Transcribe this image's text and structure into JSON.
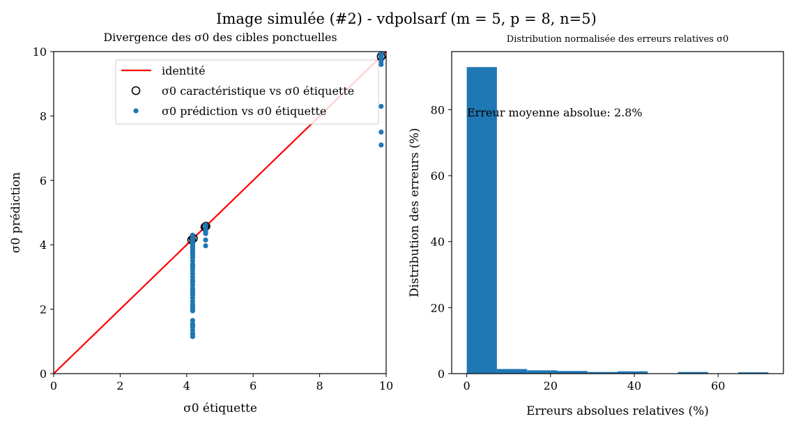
{
  "suptitle": "Image simulée (#2) - vdpolsarf (m = 5, p = 8, n=5)",
  "chart_data": [
    {
      "type": "scatter",
      "title": "Divergence des σ0 des cibles ponctuelles",
      "xlabel": "σ0 étiquette",
      "ylabel": "σ0 prédiction",
      "xlim": [
        0,
        10
      ],
      "ylim": [
        0,
        10
      ],
      "xticks": [
        "0",
        "2",
        "4",
        "6",
        "8",
        "10"
      ],
      "yticks": [
        "0",
        "2",
        "4",
        "6",
        "8",
        "10"
      ],
      "legend_position": "top-right",
      "legend": [
        {
          "label": "identité",
          "kind": "line",
          "color": "#ff0000"
        },
        {
          "label": "σ0 caractéristique vs σ0 étiquette",
          "kind": "open-circle",
          "color": "#000000"
        },
        {
          "label": "σ0 prédiction vs σ0 étiquette",
          "kind": "dot",
          "color": "#1f77b4"
        }
      ],
      "identity_line": {
        "x": [
          0,
          10
        ],
        "y": [
          0,
          10
        ]
      },
      "characteristic_points": {
        "x": [
          4.15,
          4.2,
          4.55,
          4.58,
          9.85,
          9.9
        ],
        "y": [
          4.15,
          4.2,
          4.55,
          4.58,
          9.85,
          9.9
        ]
      },
      "prediction_points": {
        "x": [
          4.18,
          4.18,
          4.18,
          4.18,
          4.18,
          4.18,
          4.18,
          4.18,
          4.18,
          4.18,
          4.18,
          4.18,
          4.18,
          4.18,
          4.18,
          4.18,
          4.18,
          4.18,
          4.18,
          4.18,
          4.18,
          4.18,
          4.18,
          4.18,
          4.18,
          4.18,
          4.18,
          4.18,
          4.18,
          4.18,
          4.18,
          4.18,
          4.18,
          4.18,
          4.18,
          4.18,
          4.18,
          4.18,
          4.18,
          4.18,
          4.18,
          4.18,
          4.18,
          4.18,
          4.18,
          4.57,
          4.57,
          4.57,
          4.57,
          4.57,
          4.57,
          4.57,
          4.57,
          4.57,
          4.57,
          9.85,
          9.85,
          9.85,
          9.85,
          9.85,
          9.85,
          9.85,
          9.85,
          9.85,
          9.85,
          9.85
        ],
        "y": [
          4.3,
          4.25,
          4.2,
          4.15,
          4.1,
          4.05,
          4.0,
          3.95,
          3.9,
          3.85,
          3.8,
          3.75,
          3.7,
          3.65,
          3.6,
          3.5,
          3.4,
          3.3,
          3.2,
          3.1,
          3.0,
          2.9,
          2.85,
          2.75,
          2.65,
          2.55,
          2.5,
          2.45,
          2.35,
          2.25,
          2.15,
          2.05,
          2.0,
          1.95,
          1.65,
          1.55,
          1.45,
          1.35,
          1.25,
          1.2,
          1.15,
          1.5,
          3.35,
          2.6,
          2.1,
          4.62,
          4.58,
          4.55,
          4.52,
          4.48,
          4.45,
          4.4,
          4.35,
          4.15,
          3.97,
          9.95,
          9.92,
          9.9,
          9.88,
          9.85,
          9.8,
          9.7,
          9.6,
          8.3,
          7.5,
          7.1
        ]
      }
    },
    {
      "type": "bar",
      "title": "Distribution normalisée des erreurs relatives σ0",
      "xlabel": "Erreurs absolues relatives (%)",
      "ylabel": "Distribution des erreurs (%)",
      "xlim": [
        -3.6,
        75.6
      ],
      "ylim": [
        0,
        97.6
      ],
      "xticks": [
        "0",
        "20",
        "40",
        "60"
      ],
      "yticks": [
        "0",
        "20",
        "40",
        "60",
        "80"
      ],
      "annotation": "Erreur moyenne absolue: 2.8%",
      "bin_edges": [
        0,
        7.2,
        14.4,
        21.6,
        28.8,
        36,
        43.2,
        50.4,
        57.6,
        64.8,
        72
      ],
      "values": [
        92.9,
        1.4,
        1.0,
        0.8,
        0.5,
        0.7,
        0,
        0.5,
        0,
        0.4
      ],
      "color": "#1f77b4"
    }
  ]
}
